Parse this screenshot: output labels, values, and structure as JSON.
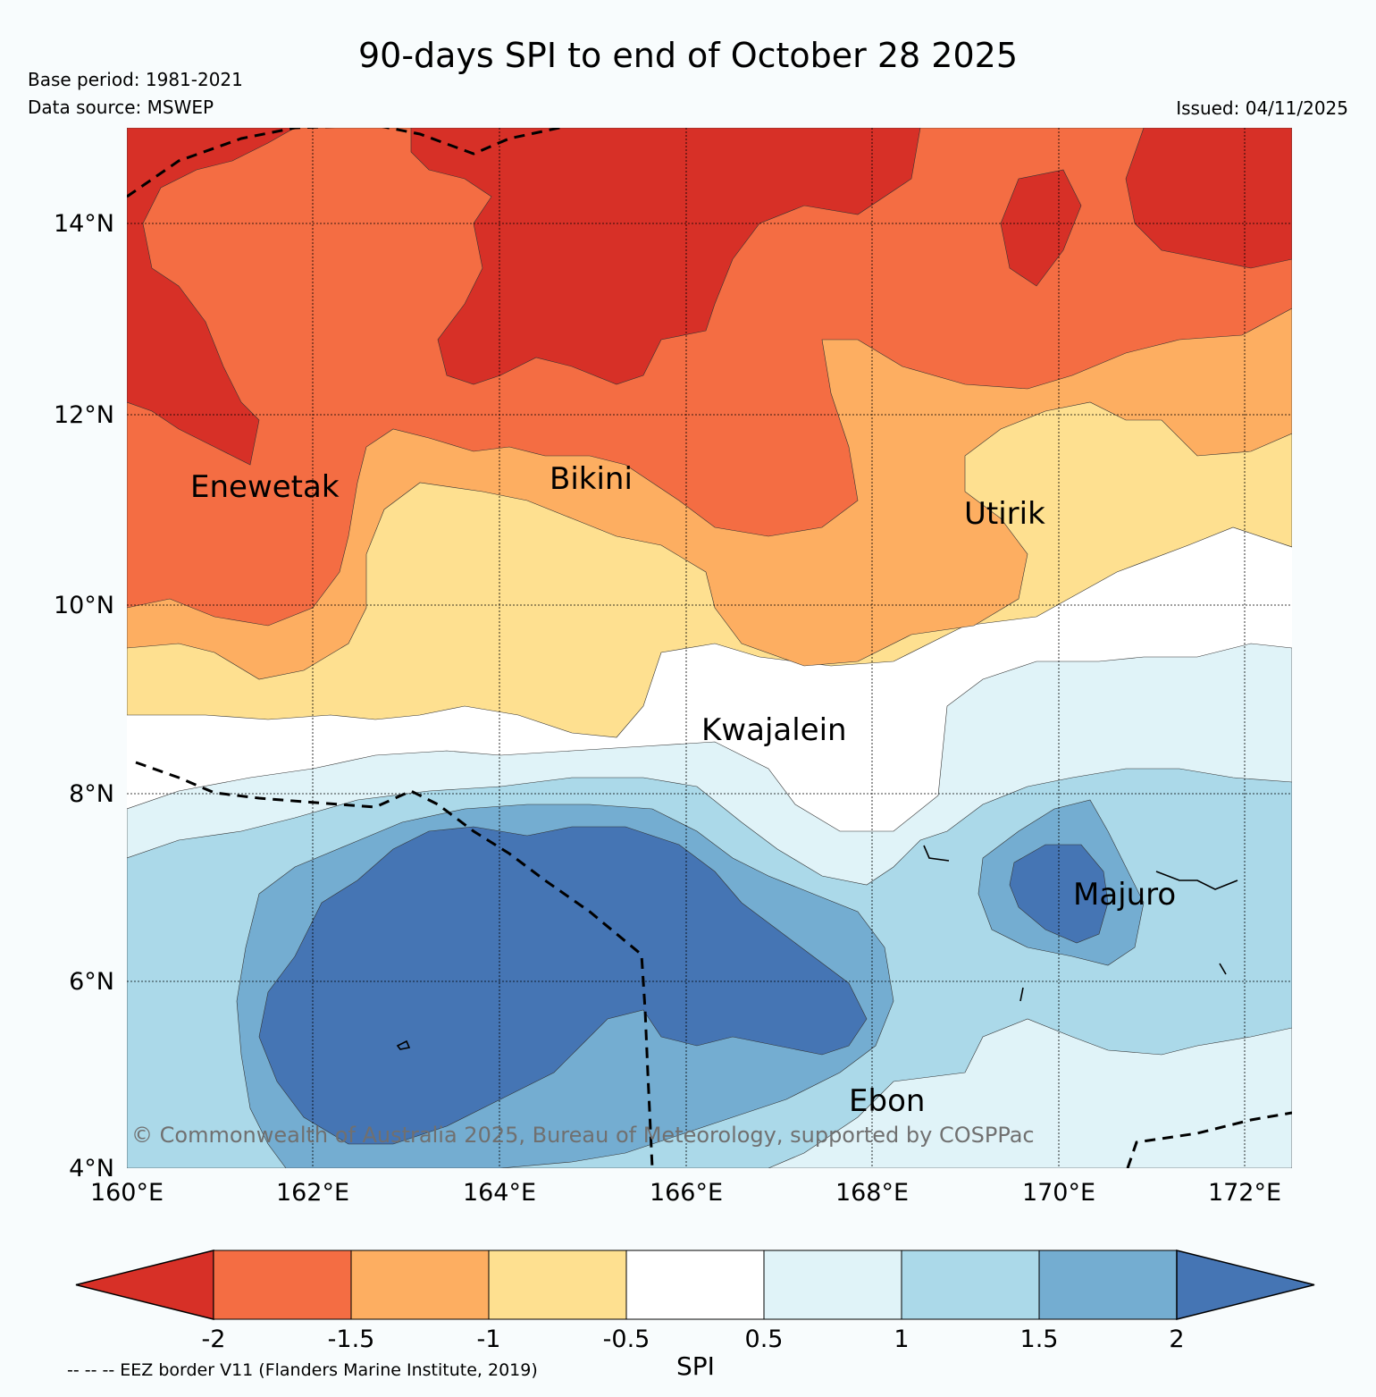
{
  "header": {
    "title": "90-days SPI to end of October 28 2025",
    "base_period": "Base period: 1981-2021",
    "data_source": "Data source: MSWEP",
    "issued": "Issued: 04/11/2025"
  },
  "map": {
    "lat_ticks": [
      "14°N",
      "12°N",
      "10°N",
      "8°N",
      "6°N",
      "4°N"
    ],
    "lon_ticks": [
      "160°E",
      "162°E",
      "164°E",
      "166°E",
      "168°E",
      "170°E",
      "172°E"
    ],
    "places": [
      "Enewetak",
      "Bikini",
      "Utirik",
      "Kwajalein",
      "Majuro",
      "Ebon"
    ],
    "copyright": "© Commonwealth of Australia 2025, Bureau of Meteorology, supported by COSPPac"
  },
  "colorbar": {
    "ticks": [
      "-2",
      "-1.5",
      "-1",
      "-0.5",
      "0.5",
      "1",
      "1.5",
      "2"
    ],
    "colors": [
      "#d73027",
      "#f46d43",
      "#fdae61",
      "#fee090",
      "#ffffff",
      "#e0f3f8",
      "#abd9e9",
      "#74add1",
      "#4575b4"
    ],
    "label": "SPI"
  },
  "footer": {
    "eez_note": "-- -- -- EEZ border V11 (Flanders Marine Institute, 2019)"
  }
}
